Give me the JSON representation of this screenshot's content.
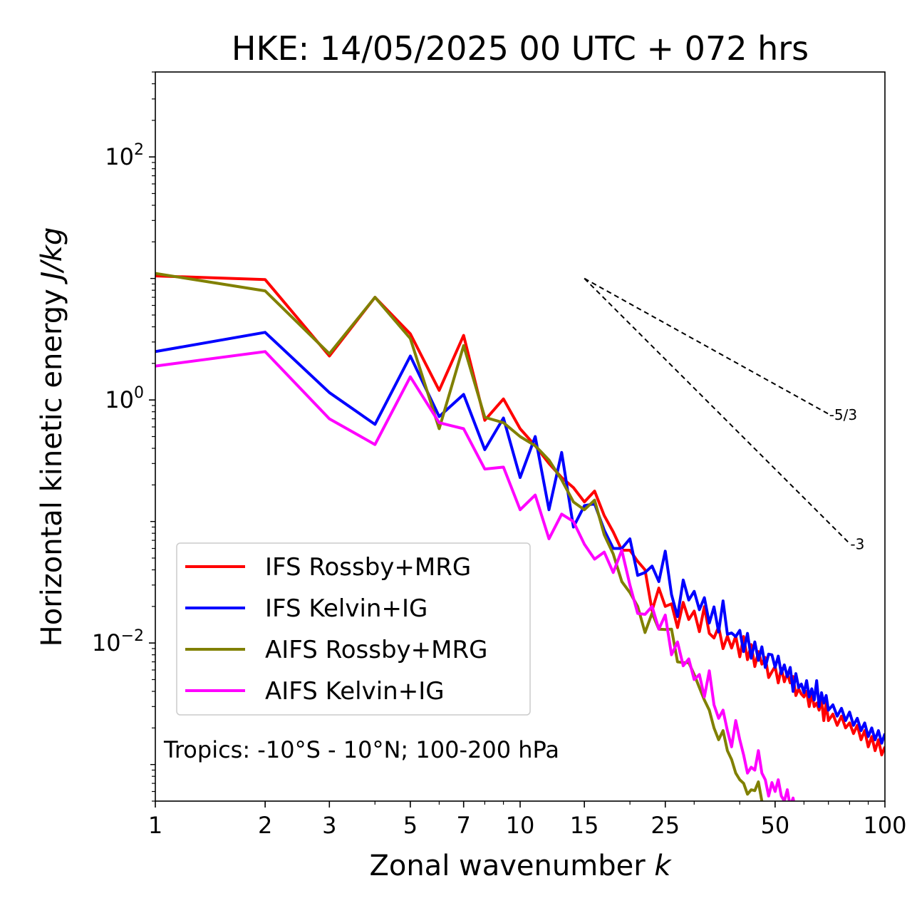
{
  "chart_data": {
    "type": "line",
    "title": "HKE: 14/05/2025 00 UTC + 072 hrs",
    "xlabel": "Zonal wavenumber",
    "xlabel_var": "k",
    "ylabel": "Horizontal kinetic energy",
    "ylabel_unit": "J/kg",
    "xscale": "log",
    "yscale": "log",
    "xlim": [
      1,
      100
    ],
    "ylim": [
      0.0005,
      500
    ],
    "x_ticks": [
      1,
      2,
      3,
      5,
      7,
      10,
      15,
      25,
      50,
      100
    ],
    "x_tick_labels": [
      "1",
      "2",
      "3",
      "5",
      "7",
      "10",
      "15",
      "25",
      "50",
      "100"
    ],
    "y_ticks": [
      {
        "value": 100,
        "base": "10",
        "exp": "2"
      },
      {
        "value": 1,
        "base": "10",
        "exp": "0"
      },
      {
        "value": 0.01,
        "base": "10",
        "exp": "−2"
      }
    ],
    "grid": false,
    "legend_position": "lower-left",
    "annotation": "Tropics: -10°S - 10°N; 100-200 hPa",
    "reference_lines": [
      {
        "label": "-5/3",
        "slope": -1.6667,
        "x_start": 15,
        "y_start": 10.0,
        "x_end": 70
      },
      {
        "label": "-3",
        "slope": -3,
        "x_start": 15,
        "y_start": 10.0,
        "x_end": 80
      }
    ],
    "series": [
      {
        "name": "IFS Rossby+MRG",
        "color": "#ff0000",
        "points": [
          [
            1,
            10.5
          ],
          [
            2,
            9.8
          ],
          [
            3,
            2.3
          ],
          [
            4,
            7.0
          ],
          [
            5,
            3.5
          ],
          [
            6,
            1.2
          ],
          [
            7,
            3.4
          ],
          [
            8,
            0.68
          ],
          [
            9,
            1.02
          ],
          [
            10,
            0.58
          ],
          [
            11,
            0.42
          ],
          [
            12,
            0.3
          ],
          [
            13,
            0.23
          ],
          [
            14,
            0.19
          ],
          [
            15,
            0.145
          ],
          [
            16,
            0.178
          ],
          [
            17,
            0.112
          ],
          [
            18,
            0.082
          ],
          [
            19,
            0.058
          ],
          [
            20,
            0.058
          ],
          [
            21,
            0.047
          ],
          [
            22,
            0.04
          ],
          [
            23,
            0.0185
          ],
          [
            24,
            0.0283
          ],
          [
            25,
            0.02
          ],
          [
            26,
            0.021
          ],
          [
            27,
            0.0134
          ],
          [
            28,
            0.0216
          ],
          [
            29,
            0.0156
          ],
          [
            30,
            0.0183
          ],
          [
            31,
            0.0124
          ],
          [
            32,
            0.0199
          ],
          [
            33,
            0.012
          ],
          [
            34,
            0.011
          ],
          [
            35,
            0.0136
          ],
          [
            36,
            0.009
          ],
          [
            37,
            0.0114
          ],
          [
            38,
            0.0091
          ],
          [
            39,
            0.0114
          ],
          [
            40,
            0.0077
          ],
          [
            41,
            0.0113
          ],
          [
            42,
            0.0073
          ],
          [
            43,
            0.0097
          ],
          [
            44,
            0.0064
          ],
          [
            45,
            0.0085
          ],
          [
            46,
            0.0067
          ],
          [
            47,
            0.0076
          ],
          [
            48,
            0.0052
          ],
          [
            49,
            0.0058
          ],
          [
            50,
            0.0064
          ],
          [
            51,
            0.0047
          ],
          [
            52,
            0.0062
          ],
          [
            53,
            0.0048
          ],
          [
            54,
            0.0056
          ],
          [
            55,
            0.0047
          ],
          [
            56,
            0.0053
          ],
          [
            57,
            0.0037
          ],
          [
            58,
            0.0042
          ],
          [
            59,
            0.0038
          ],
          [
            60,
            0.0036
          ],
          [
            61,
            0.004
          ],
          [
            62,
            0.003
          ],
          [
            63,
            0.0038
          ],
          [
            64,
            0.003
          ],
          [
            65,
            0.0032
          ],
          [
            66,
            0.0028
          ],
          [
            67,
            0.0034
          ],
          [
            68,
            0.0023
          ],
          [
            69,
            0.0032
          ],
          [
            70,
            0.0023
          ],
          [
            72,
            0.0026
          ],
          [
            74,
            0.0021
          ],
          [
            76,
            0.0025
          ],
          [
            78,
            0.002
          ],
          [
            80,
            0.0022
          ],
          [
            82,
            0.0018
          ],
          [
            84,
            0.0021
          ],
          [
            86,
            0.0016
          ],
          [
            88,
            0.0019
          ],
          [
            90,
            0.0014
          ],
          [
            92,
            0.0017
          ],
          [
            94,
            0.0013
          ],
          [
            96,
            0.0016
          ],
          [
            98,
            0.0012
          ],
          [
            100,
            0.0014
          ]
        ]
      },
      {
        "name": "IFS Kelvin+IG",
        "color": "#0000ff",
        "points": [
          [
            1,
            2.5
          ],
          [
            2,
            3.6
          ],
          [
            3,
            1.15
          ],
          [
            4,
            0.63
          ],
          [
            5,
            2.3
          ],
          [
            6,
            0.73
          ],
          [
            7,
            1.11
          ],
          [
            8,
            0.39
          ],
          [
            9,
            0.71
          ],
          [
            10,
            0.23
          ],
          [
            11,
            0.5
          ],
          [
            12,
            0.125
          ],
          [
            13,
            0.37
          ],
          [
            14,
            0.09
          ],
          [
            15,
            0.135
          ],
          [
            16,
            0.14
          ],
          [
            17,
            0.085
          ],
          [
            18,
            0.06
          ],
          [
            19,
            0.06
          ],
          [
            20,
            0.072
          ],
          [
            21,
            0.036
          ],
          [
            22,
            0.038
          ],
          [
            23,
            0.043
          ],
          [
            24,
            0.032
          ],
          [
            25,
            0.057
          ],
          [
            26,
            0.025
          ],
          [
            27,
            0.0165
          ],
          [
            28,
            0.033
          ],
          [
            29,
            0.0226
          ],
          [
            30,
            0.0266
          ],
          [
            31,
            0.0188
          ],
          [
            32,
            0.0236
          ],
          [
            33,
            0.0146
          ],
          [
            34,
            0.0198
          ],
          [
            35,
            0.0123
          ],
          [
            36,
            0.0222
          ],
          [
            37,
            0.0118
          ],
          [
            38,
            0.0121
          ],
          [
            39,
            0.0113
          ],
          [
            40,
            0.0127
          ],
          [
            41,
            0.0085
          ],
          [
            42,
            0.012
          ],
          [
            43,
            0.0075
          ],
          [
            44,
            0.0102
          ],
          [
            45,
            0.0072
          ],
          [
            46,
            0.0093
          ],
          [
            47,
            0.0063
          ],
          [
            48,
            0.0081
          ],
          [
            49,
            0.008
          ],
          [
            50,
            0.0063
          ],
          [
            51,
            0.0078
          ],
          [
            52,
            0.0056
          ],
          [
            53,
            0.0066
          ],
          [
            54,
            0.0053
          ],
          [
            55,
            0.0063
          ],
          [
            56,
            0.004
          ],
          [
            57,
            0.0056
          ],
          [
            58,
            0.0043
          ],
          [
            59,
            0.0046
          ],
          [
            60,
            0.0039
          ],
          [
            61,
            0.0049
          ],
          [
            62,
            0.0036
          ],
          [
            63,
            0.0042
          ],
          [
            64,
            0.0034
          ],
          [
            65,
            0.0049
          ],
          [
            66,
            0.003
          ],
          [
            67,
            0.0039
          ],
          [
            68,
            0.0032
          ],
          [
            69,
            0.0037
          ],
          [
            70,
            0.0028
          ],
          [
            72,
            0.0031
          ],
          [
            74,
            0.0025
          ],
          [
            76,
            0.0029
          ],
          [
            78,
            0.0023
          ],
          [
            80,
            0.0027
          ],
          [
            82,
            0.0021
          ],
          [
            84,
            0.0024
          ],
          [
            86,
            0.0019
          ],
          [
            88,
            0.0022
          ],
          [
            90,
            0.0017
          ],
          [
            92,
            0.002
          ],
          [
            94,
            0.0016
          ],
          [
            96,
            0.0019
          ],
          [
            98,
            0.0015
          ],
          [
            100,
            0.0018
          ]
        ]
      },
      {
        "name": "AIFS Rossby+MRG",
        "color": "#808000",
        "points": [
          [
            1,
            11.0
          ],
          [
            2,
            7.9
          ],
          [
            3,
            2.4
          ],
          [
            4,
            7.0
          ],
          [
            5,
            3.2
          ],
          [
            6,
            0.58
          ],
          [
            7,
            2.8
          ],
          [
            8,
            0.72
          ],
          [
            9,
            0.65
          ],
          [
            10,
            0.5
          ],
          [
            11,
            0.42
          ],
          [
            12,
            0.32
          ],
          [
            13,
            0.22
          ],
          [
            14,
            0.145
          ],
          [
            15,
            0.125
          ],
          [
            16,
            0.15
          ],
          [
            17,
            0.078
          ],
          [
            18,
            0.054
          ],
          [
            19,
            0.032
          ],
          [
            20,
            0.026
          ],
          [
            21,
            0.02
          ],
          [
            22,
            0.0122
          ],
          [
            23,
            0.0176
          ],
          [
            24,
            0.013
          ],
          [
            25,
            0.0129
          ],
          [
            26,
            0.013
          ],
          [
            27,
            0.007
          ],
          [
            28,
            0.0069
          ],
          [
            29,
            0.0069
          ],
          [
            30,
            0.0055
          ],
          [
            31,
            0.0043
          ],
          [
            32,
            0.0034
          ],
          [
            33,
            0.0028
          ],
          [
            34,
            0.002
          ],
          [
            35,
            0.0016
          ],
          [
            36,
            0.0019
          ],
          [
            37,
            0.0013
          ],
          [
            38,
            0.0011
          ],
          [
            39,
            0.00085
          ],
          [
            40,
            0.00075
          ],
          [
            41,
            0.0007
          ],
          [
            42,
            0.00057
          ],
          [
            43,
            0.00062
          ],
          [
            44,
            0.00061
          ],
          [
            45,
            0.00072
          ],
          [
            46,
            0.0005
          ],
          [
            47,
            0.00038
          ],
          [
            48,
            0.0003
          ]
        ]
      },
      {
        "name": "AIFS Kelvin+IG",
        "color": "#ff00ff",
        "points": [
          [
            1,
            1.9
          ],
          [
            2,
            2.5
          ],
          [
            3,
            0.7
          ],
          [
            4,
            0.43
          ],
          [
            5,
            1.55
          ],
          [
            6,
            0.65
          ],
          [
            7,
            0.58
          ],
          [
            8,
            0.27
          ],
          [
            9,
            0.28
          ],
          [
            10,
            0.125
          ],
          [
            11,
            0.165
          ],
          [
            12,
            0.072
          ],
          [
            13,
            0.115
          ],
          [
            14,
            0.1
          ],
          [
            15,
            0.065
          ],
          [
            16,
            0.049
          ],
          [
            17,
            0.056
          ],
          [
            18,
            0.038
          ],
          [
            19,
            0.058
          ],
          [
            20,
            0.03
          ],
          [
            21,
            0.0175
          ],
          [
            22,
            0.0172
          ],
          [
            23,
            0.02
          ],
          [
            24,
            0.013
          ],
          [
            25,
            0.017
          ],
          [
            26,
            0.008
          ],
          [
            27,
            0.0102
          ],
          [
            28,
            0.0065
          ],
          [
            29,
            0.0074
          ],
          [
            30,
            0.005
          ],
          [
            31,
            0.0055
          ],
          [
            32,
            0.0036
          ],
          [
            33,
            0.0059
          ],
          [
            34,
            0.0031
          ],
          [
            35,
            0.0024
          ],
          [
            36,
            0.0028
          ],
          [
            37,
            0.0019
          ],
          [
            38,
            0.0014
          ],
          [
            39,
            0.0023
          ],
          [
            40,
            0.0016
          ],
          [
            41,
            0.0012
          ],
          [
            42,
            0.00085
          ],
          [
            43,
            0.00095
          ],
          [
            44,
            0.0009
          ],
          [
            45,
            0.0013
          ],
          [
            46,
            0.00085
          ],
          [
            47,
            0.00075
          ],
          [
            48,
            0.00055
          ],
          [
            49,
            0.00071
          ],
          [
            50,
            0.0006
          ],
          [
            51,
            0.00075
          ],
          [
            52,
            0.00055
          ],
          [
            53,
            0.0005
          ],
          [
            54,
            0.00062
          ],
          [
            55,
            0.00045
          ],
          [
            56,
            0.00053
          ],
          [
            57,
            0.0004
          ]
        ]
      }
    ]
  }
}
